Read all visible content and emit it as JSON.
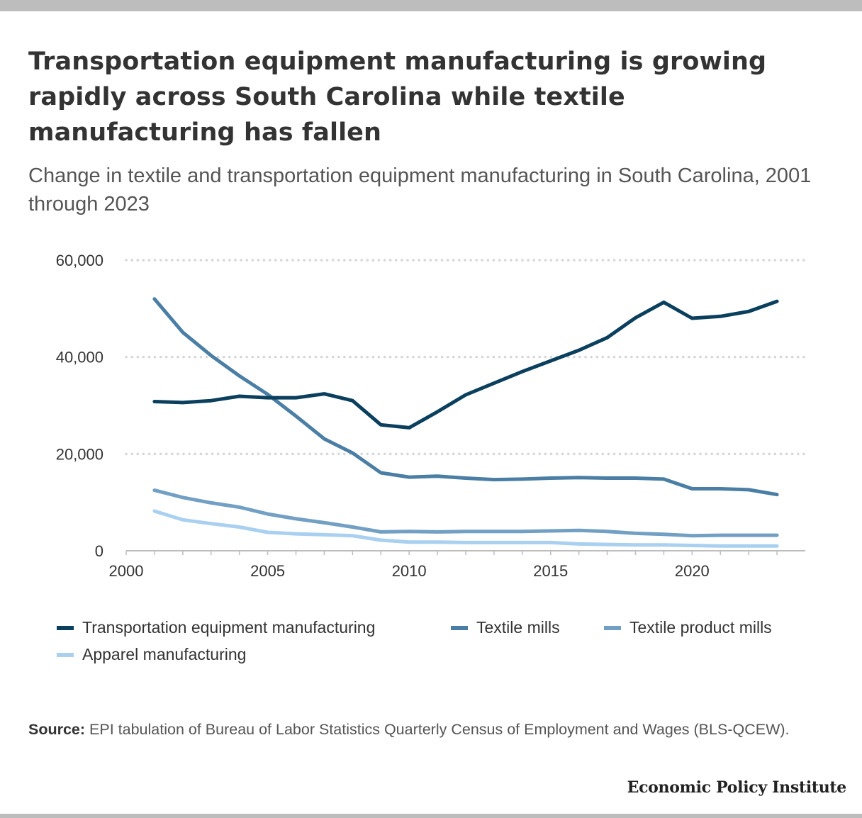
{
  "title": "Transportation equipment manufacturing is growing rapidly across South Carolina while textile manufacturing has fallen",
  "subtitle": "Change in textile and transportation equipment manufacturing in South Carolina, 2001 through 2023",
  "source_label": "Source:",
  "source_text": "EPI tabulation of Bureau of Labor Statistics Quarterly Census of Employment and Wages (BLS-QCEW).",
  "brand": "Economic Policy Institute",
  "chart_data": {
    "type": "line",
    "x": [
      2001,
      2002,
      2003,
      2004,
      2005,
      2006,
      2007,
      2008,
      2009,
      2010,
      2011,
      2012,
      2013,
      2014,
      2015,
      2016,
      2017,
      2018,
      2019,
      2020,
      2021,
      2022,
      2023
    ],
    "xlim": [
      2000,
      2024
    ],
    "ylim": [
      0,
      60000
    ],
    "x_ticks": [
      2000,
      2005,
      2010,
      2015,
      2020
    ],
    "x_tick_labels": [
      "2000",
      "2005",
      "2010",
      "2015",
      "2020"
    ],
    "y_ticks": [
      0,
      20000,
      40000,
      60000
    ],
    "y_tick_labels": [
      "0",
      "20,000",
      "40,000",
      "60,000"
    ],
    "grid": "horizontal dotted",
    "legend_position": "bottom",
    "series": [
      {
        "name": "Transportation equipment manufacturing",
        "color": "#0b3f5e",
        "values": [
          30800,
          30600,
          31000,
          31900,
          31600,
          31600,
          32400,
          31000,
          26000,
          25400,
          28700,
          32200,
          34600,
          37000,
          39200,
          41400,
          44000,
          48100,
          51300,
          48000,
          48400,
          49400,
          51500
        ]
      },
      {
        "name": "Textile mills",
        "color": "#4a7ea5",
        "values": [
          52000,
          45100,
          40300,
          36100,
          32300,
          27800,
          23100,
          20200,
          16100,
          15200,
          15400,
          15000,
          14700,
          14800,
          15000,
          15100,
          15000,
          15000,
          14800,
          12800,
          12800,
          12600,
          11600
        ]
      },
      {
        "name": "Textile product mills",
        "color": "#729fc4",
        "values": [
          12500,
          11000,
          9900,
          9000,
          7600,
          6600,
          5800,
          4900,
          3900,
          4000,
          3900,
          4000,
          4000,
          4000,
          4100,
          4200,
          4000,
          3600,
          3400,
          3100,
          3200,
          3200,
          3200
        ]
      },
      {
        "name": "Apparel manufacturing",
        "color": "#a9d0f0",
        "values": [
          8200,
          6400,
          5600,
          4900,
          3800,
          3500,
          3300,
          3100,
          2200,
          1800,
          1800,
          1700,
          1700,
          1700,
          1700,
          1400,
          1300,
          1200,
          1200,
          1100,
          1000,
          1000,
          1000
        ]
      }
    ]
  }
}
